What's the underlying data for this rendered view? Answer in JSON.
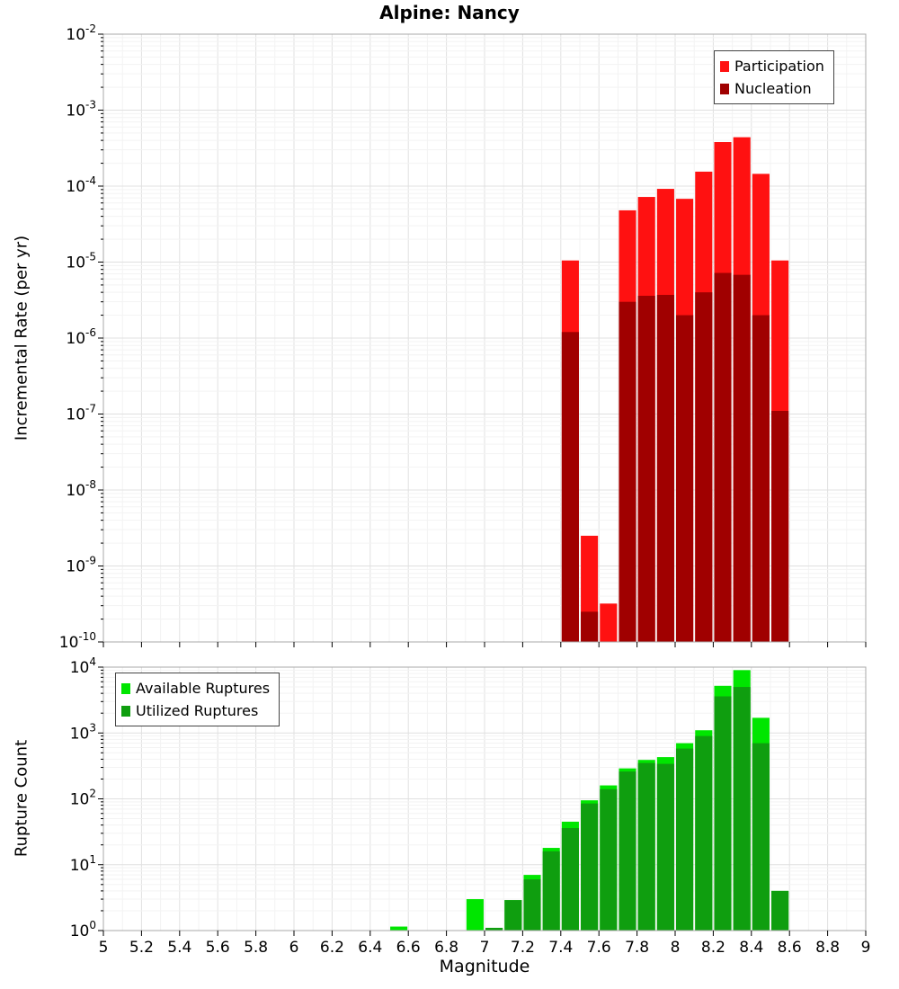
{
  "chart_data": [
    {
      "type": "bar",
      "title": "Alpine: Nancy",
      "xlabel": "",
      "ylabel": "Incremental Rate (per yr)",
      "xlim": [
        5,
        9
      ],
      "ylim": [
        1e-10,
        0.01
      ],
      "x_tick_step": 0.2,
      "bin_width": 0.1,
      "grid": "on",
      "legend_position": "top-right",
      "series": [
        {
          "name": "Participation",
          "color": "#ff1111",
          "x": [
            7.45,
            7.55,
            7.65,
            7.75,
            7.85,
            7.95,
            8.05,
            8.15,
            8.25,
            8.35,
            8.45,
            8.55
          ],
          "values": [
            1.05e-05,
            2.5e-09,
            3.2e-10,
            4.8e-05,
            7.2e-05,
            9.2e-05,
            6.8e-05,
            0.000155,
            0.00038,
            0.00044,
            0.000145,
            1.05e-05
          ]
        },
        {
          "name": "Nucleation",
          "color": "#a00000",
          "x": [
            7.45,
            7.55,
            7.65,
            7.75,
            7.85,
            7.95,
            8.05,
            8.15,
            8.25,
            8.35,
            8.45,
            8.55
          ],
          "values": [
            1.2e-06,
            2.5e-10,
            null,
            3e-06,
            3.6e-06,
            3.7e-06,
            2e-06,
            4e-06,
            7.2e-06,
            6.8e-06,
            2e-06,
            1.1e-07
          ]
        }
      ]
    },
    {
      "type": "bar",
      "title": "",
      "xlabel": "Magnitude",
      "ylabel": "Rupture Count",
      "xlim": [
        5,
        9
      ],
      "ylim": [
        1,
        10000.0
      ],
      "x_tick_step": 0.2,
      "bin_width": 0.1,
      "grid": "on",
      "legend_position": "top-left",
      "series": [
        {
          "name": "Available Ruptures",
          "color": "#00e600",
          "x": [
            6.55,
            6.95,
            7.05,
            7.15,
            7.25,
            7.35,
            7.45,
            7.55,
            7.65,
            7.75,
            7.85,
            7.95,
            8.05,
            8.15,
            8.25,
            8.35,
            8.45,
            8.55
          ],
          "values": [
            1.15,
            3,
            1.1,
            2.9,
            7,
            18,
            45,
            95,
            160,
            290,
            390,
            430,
            700,
            1100,
            5200,
            9000,
            1700,
            4
          ]
        },
        {
          "name": "Utilized Ruptures",
          "color": "#0f9e0f",
          "x": [
            6.55,
            6.95,
            7.05,
            7.15,
            7.25,
            7.35,
            7.45,
            7.55,
            7.65,
            7.75,
            7.85,
            7.95,
            8.05,
            8.15,
            8.25,
            8.35,
            8.45,
            8.55
          ],
          "values": [
            null,
            null,
            1.1,
            2.9,
            6,
            16,
            36,
            85,
            140,
            260,
            350,
            340,
            580,
            900,
            3600,
            5000,
            700,
            4
          ]
        }
      ]
    }
  ]
}
